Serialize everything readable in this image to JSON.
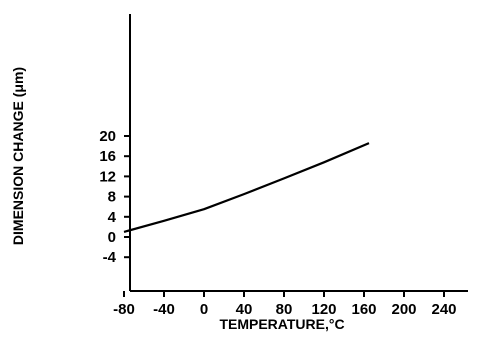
{
  "chart_data": {
    "type": "line",
    "xlabel": "TEMPERATURE,°C",
    "ylabel": "DIMENSION CHANGE (μm)",
    "xlim": [
      -90,
      250
    ],
    "ylim": [
      -6,
      22
    ],
    "xticks": [
      -80,
      -40,
      0,
      40,
      80,
      120,
      160,
      200,
      240
    ],
    "xtick_labels": [
      "-80",
      "-40",
      "0",
      "40",
      "80",
      "120",
      "160",
      "200",
      "240"
    ],
    "yticks": [
      -4,
      0,
      4,
      8,
      12,
      16,
      20
    ],
    "ytick_labels": [
      "-4",
      "0",
      "4",
      "8",
      "12",
      "16",
      "20"
    ],
    "grid": false,
    "series": [
      {
        "x": [
          -80,
          -40,
          0,
          40,
          80,
          120,
          165
        ],
        "y": [
          1.0,
          3.2,
          5.5,
          8.5,
          11.6,
          14.8,
          18.6
        ]
      }
    ]
  }
}
